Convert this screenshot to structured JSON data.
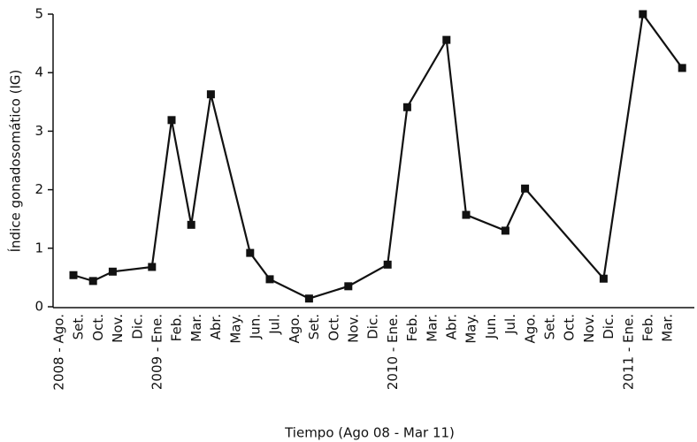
{
  "chart_data": {
    "type": "line",
    "x_label": "Tiempo (Ago 08 - Mar 11)",
    "y_label": "Índice gonadosomático (IG)",
    "categories": [
      "2008 - Ago.",
      "Set.",
      "Oct.",
      "Nov.",
      "Dic.",
      "2009 - Ene.",
      "Feb.",
      "Mar.",
      "Abr.",
      "May.",
      "Jun.",
      "Jul.",
      "Ago.",
      "Set.",
      "Oct.",
      "Nov.",
      "Dic.",
      "2010 - Ene.",
      "Feb.",
      "Mar.",
      "Abr.",
      "May.",
      "Jun.",
      "Jul.",
      "Ago.",
      "Set.",
      "Oct.",
      "Nov.",
      "Dic.",
      "2011 - Ene.",
      "Feb.",
      "Mar."
    ],
    "series": [
      {
        "color": "#111111",
        "values": [
          0.54,
          0.44,
          0.6,
          null,
          0.68,
          3.19,
          1.4,
          3.63,
          null,
          0.92,
          0.47,
          null,
          0.14,
          null,
          0.35,
          null,
          0.72,
          3.41,
          null,
          4.56,
          1.57,
          null,
          1.3,
          2.02,
          null,
          null,
          null,
          0.48,
          null,
          5.0,
          null,
          4.08
        ]
      }
    ],
    "ylim": [
      0,
      5
    ],
    "yticks": [
      0,
      1,
      2,
      3,
      4,
      5
    ]
  }
}
